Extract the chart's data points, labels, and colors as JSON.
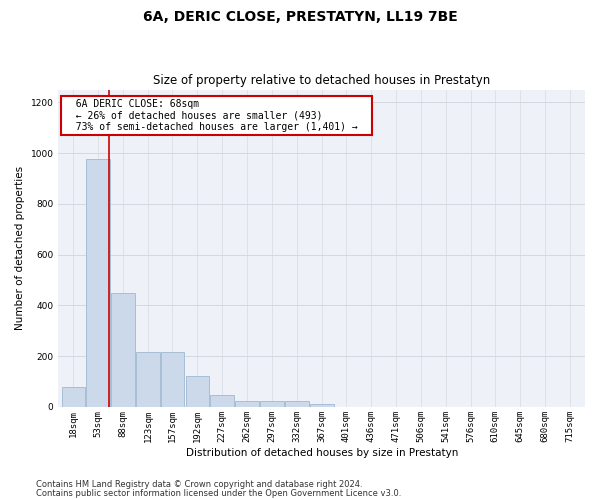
{
  "title": "6A, DERIC CLOSE, PRESTATYN, LL19 7BE",
  "subtitle": "Size of property relative to detached houses in Prestatyn",
  "xlabel": "Distribution of detached houses by size in Prestatyn",
  "ylabel": "Number of detached properties",
  "footnote1": "Contains HM Land Registry data © Crown copyright and database right 2024.",
  "footnote2": "Contains public sector information licensed under the Open Government Licence v3.0.",
  "annotation_title": "6A DERIC CLOSE: 68sqm",
  "annotation_line1": "← 26% of detached houses are smaller (493)",
  "annotation_line2": "73% of semi-detached houses are larger (1,401) →",
  "property_size": 68,
  "bar_bins": [
    18,
    53,
    88,
    123,
    157,
    192,
    227,
    262,
    297,
    332,
    367,
    401,
    436,
    471,
    506,
    541,
    576,
    610,
    645,
    680,
    715
  ],
  "bar_values": [
    80,
    975,
    450,
    215,
    215,
    120,
    48,
    25,
    22,
    22,
    13,
    0,
    0,
    0,
    0,
    0,
    0,
    0,
    0,
    0,
    0
  ],
  "bar_color": "#ccd9ea",
  "bar_edge_color": "#a0b8d0",
  "vline_color": "#cc0000",
  "vline_x": 68,
  "ylim": [
    0,
    1250
  ],
  "yticks": [
    0,
    200,
    400,
    600,
    800,
    1000,
    1200
  ],
  "annotation_box_color": "#ffffff",
  "annotation_box_edge": "#cc0000",
  "bg_color": "#eef2f8",
  "grid_color": "#d0d4dc",
  "title_fontsize": 10,
  "subtitle_fontsize": 8.5,
  "axis_label_fontsize": 7.5,
  "tick_fontsize": 6.5,
  "footnote_fontsize": 6,
  "annotation_fontsize": 7
}
